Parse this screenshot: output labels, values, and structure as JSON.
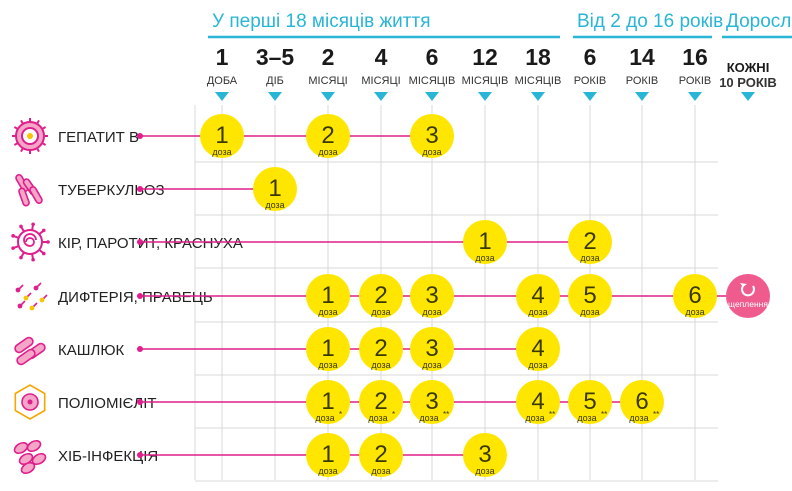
{
  "groups": [
    {
      "label": "У перші 18 місяців життя"
    },
    {
      "label": "Від 2 до 16 років"
    },
    {
      "label": "Дорослі"
    }
  ],
  "columns": [
    {
      "num": "1",
      "unit": "ДОБА"
    },
    {
      "num": "3–5",
      "unit": "ДІБ"
    },
    {
      "num": "2",
      "unit": "МІСЯЦІ"
    },
    {
      "num": "4",
      "unit": "МІСЯЦІ"
    },
    {
      "num": "6",
      "unit": "МІСЯЦІВ"
    },
    {
      "num": "12",
      "unit": "МІСЯЦІВ"
    },
    {
      "num": "18",
      "unit": "МІСЯЦІВ"
    },
    {
      "num": "6",
      "unit": "РОКІВ"
    },
    {
      "num": "14",
      "unit": "РОКІВ"
    },
    {
      "num": "16",
      "unit": "РОКІВ"
    },
    {
      "num": "КОЖНІ",
      "unit": "10 РОКІВ"
    }
  ],
  "dose_label": "доза",
  "booster_label": "щеплення",
  "colors": {
    "accent": "#29b6d6",
    "dose": "#ffe600",
    "booster": "#ef5b8d",
    "vaccine_line": "#e01e8c",
    "grid": "#d9d9d9"
  },
  "rows": [
    {
      "label": "ГЕПАТИТ В",
      "icon": "hepatitis-b-virus-icon",
      "doses": [
        {
          "col": 0,
          "n": "1"
        },
        {
          "col": 2,
          "n": "2"
        },
        {
          "col": 4,
          "n": "3"
        }
      ]
    },
    {
      "label": "ТУБЕРКУЛЬОЗ",
      "icon": "tuberculosis-bacteria-icon",
      "doses": [
        {
          "col": 1,
          "n": "1"
        }
      ]
    },
    {
      "label": "КІР, ПАРОТИТ, КРАСНУХА",
      "icon": "measles-virus-icon",
      "doses": [
        {
          "col": 5,
          "n": "1"
        },
        {
          "col": 7,
          "n": "2"
        }
      ]
    },
    {
      "label": "ДИФТЕРІЯ, ПРАВЕЦЬ",
      "icon": "diphtheria-bacteria-icon",
      "doses": [
        {
          "col": 2,
          "n": "1"
        },
        {
          "col": 3,
          "n": "2"
        },
        {
          "col": 4,
          "n": "3"
        },
        {
          "col": 6,
          "n": "4"
        },
        {
          "col": 7,
          "n": "5"
        },
        {
          "col": 9,
          "n": "6"
        }
      ],
      "booster": {
        "col": 10
      }
    },
    {
      "label": "КАШЛЮК",
      "icon": "pertussis-bacteria-icon",
      "doses": [
        {
          "col": 2,
          "n": "1"
        },
        {
          "col": 3,
          "n": "2"
        },
        {
          "col": 4,
          "n": "3"
        },
        {
          "col": 6,
          "n": "4"
        }
      ]
    },
    {
      "label": "ПОЛІОМІЄЛІТ",
      "icon": "polio-virus-icon",
      "doses": [
        {
          "col": 2,
          "n": "1",
          "mark": "*"
        },
        {
          "col": 3,
          "n": "2",
          "mark": "*"
        },
        {
          "col": 4,
          "n": "3",
          "mark": "**"
        },
        {
          "col": 6,
          "n": "4",
          "mark": "**"
        },
        {
          "col": 7,
          "n": "5",
          "mark": "**"
        },
        {
          "col": 8,
          "n": "6",
          "mark": "**"
        }
      ]
    },
    {
      "label": "ХІБ-ІНФЕКЦІЯ",
      "icon": "hib-bacteria-icon",
      "doses": [
        {
          "col": 2,
          "n": "1"
        },
        {
          "col": 3,
          "n": "2"
        },
        {
          "col": 5,
          "n": "3"
        }
      ]
    }
  ]
}
